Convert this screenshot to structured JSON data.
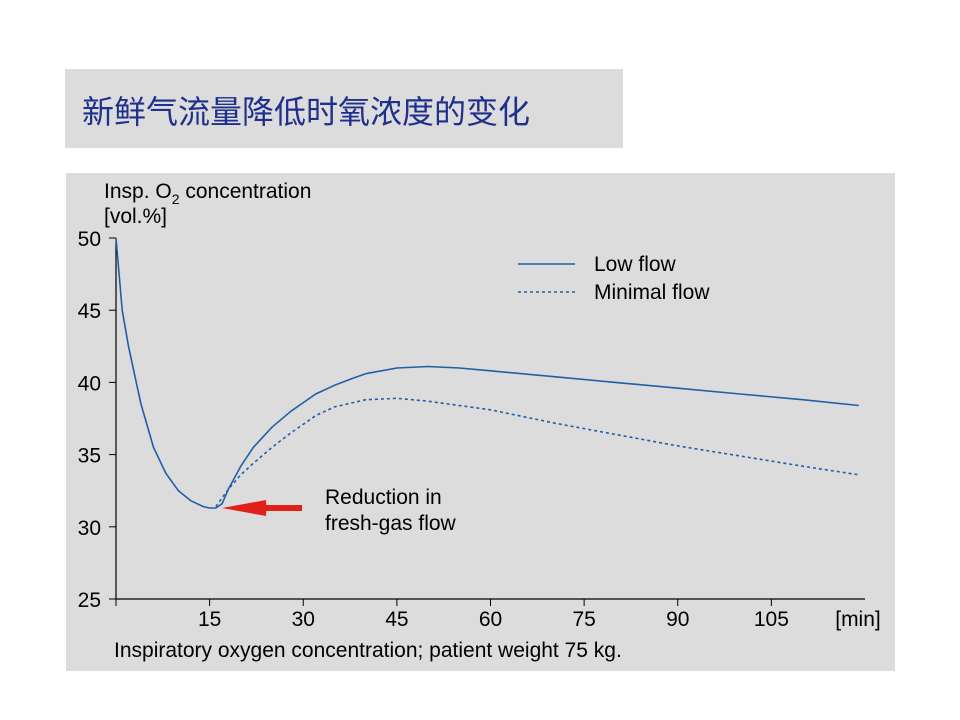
{
  "slide": {
    "title": "新鲜气流量降低时氧浓度的变化"
  },
  "chart_data": {
    "type": "line",
    "ylabel_line1": "Insp. O",
    "ylabel_sub": "2",
    "ylabel_suffix": " concentration",
    "ylabel_line2": "[vol.%]",
    "xunit": "[min]",
    "caption": "Inspiratory oxygen concentration; patient weight 75 kg.",
    "xlim": [
      0,
      120
    ],
    "ylim": [
      25,
      50
    ],
    "xticks": [
      15,
      30,
      45,
      60,
      75,
      90,
      105
    ],
    "yticks": [
      25,
      30,
      35,
      40,
      45,
      50
    ],
    "legend_position": "top-right",
    "annotation": {
      "line1": "Reduction in",
      "line2": "fresh-gas flow",
      "x": 17,
      "y": 31.3
    },
    "colors": {
      "line": "#1f5fa8",
      "arrow": "#e0201a"
    },
    "series": [
      {
        "name": "Low flow",
        "style": "solid",
        "x": [
          0,
          0.5,
          1,
          2,
          3,
          4,
          6,
          8,
          10,
          12,
          14,
          15,
          16,
          17,
          18,
          20,
          22,
          25,
          28,
          30,
          32,
          35,
          38,
          40,
          45,
          50,
          55,
          60,
          70,
          80,
          90,
          100,
          110,
          119
        ],
        "y": [
          50,
          47.5,
          45,
          42.5,
          40.5,
          38.5,
          35.5,
          33.7,
          32.5,
          31.8,
          31.4,
          31.3,
          31.3,
          31.6,
          32.6,
          34.2,
          35.5,
          36.9,
          38.0,
          38.6,
          39.2,
          39.8,
          40.3,
          40.6,
          41.0,
          41.1,
          41.0,
          40.8,
          40.4,
          40.0,
          39.6,
          39.2,
          38.8,
          38.4
        ]
      },
      {
        "name": "Minimal flow",
        "style": "dotted",
        "x": [
          16,
          17,
          18,
          20,
          22,
          25,
          28,
          30,
          32,
          35,
          38,
          40,
          45,
          50,
          55,
          60,
          70,
          80,
          90,
          100,
          110,
          119
        ],
        "y": [
          31.4,
          32.0,
          32.6,
          33.6,
          34.4,
          35.5,
          36.5,
          37.1,
          37.7,
          38.3,
          38.6,
          38.8,
          38.9,
          38.7,
          38.4,
          38.1,
          37.2,
          36.4,
          35.6,
          34.9,
          34.2,
          33.6
        ]
      }
    ]
  }
}
